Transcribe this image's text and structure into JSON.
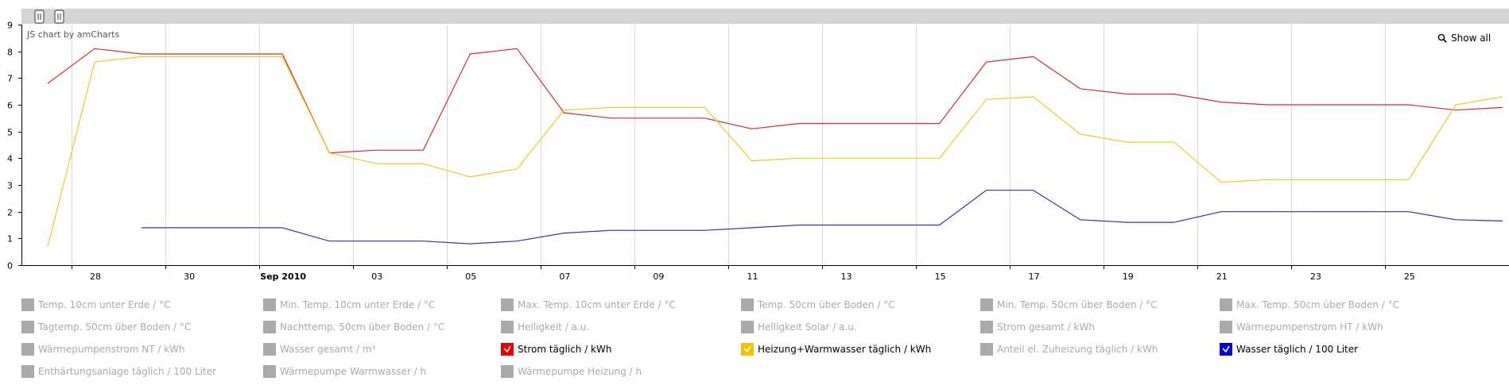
{
  "credit": "JS chart by amCharts",
  "show_all_label": "Show all",
  "chart_data": {
    "type": "line",
    "ylim": [
      0,
      9
    ],
    "yticks": [
      0,
      1,
      2,
      3,
      4,
      5,
      6,
      7,
      8,
      9
    ],
    "x_start": "2010-08-27",
    "x_end": "2010-09-27",
    "xticks": [
      {
        "date": "2010-08-28",
        "label": "28",
        "bold": false
      },
      {
        "date": "2010-08-30",
        "label": "30",
        "bold": false
      },
      {
        "date": "2010-09-01",
        "label": "Sep 2010",
        "bold": true
      },
      {
        "date": "2010-09-03",
        "label": "03",
        "bold": false
      },
      {
        "date": "2010-09-05",
        "label": "05",
        "bold": false
      },
      {
        "date": "2010-09-07",
        "label": "07",
        "bold": false
      },
      {
        "date": "2010-09-09",
        "label": "09",
        "bold": false
      },
      {
        "date": "2010-09-11",
        "label": "11",
        "bold": false
      },
      {
        "date": "2010-09-13",
        "label": "13",
        "bold": false
      },
      {
        "date": "2010-09-15",
        "label": "15",
        "bold": false
      },
      {
        "date": "2010-09-17",
        "label": "17",
        "bold": false
      },
      {
        "date": "2010-09-19",
        "label": "19",
        "bold": false
      },
      {
        "date": "2010-09-21",
        "label": "21",
        "bold": false
      },
      {
        "date": "2010-09-23",
        "label": "23",
        "bold": false
      },
      {
        "date": "2010-09-25",
        "label": "25",
        "bold": false
      }
    ],
    "grid": true,
    "series": [
      {
        "name": "Strom täglich / kWh",
        "color": "#d12b2b",
        "points": [
          [
            "2010-08-27",
            6.8
          ],
          [
            "2010-08-28",
            8.1
          ],
          [
            "2010-08-29",
            7.9
          ],
          [
            "2010-08-30",
            7.9
          ],
          [
            "2010-08-31",
            7.9
          ],
          [
            "2010-09-01",
            7.9
          ],
          [
            "2010-09-02",
            4.2
          ],
          [
            "2010-09-03",
            4.3
          ],
          [
            "2010-09-04",
            4.3
          ],
          [
            "2010-09-05",
            7.9
          ],
          [
            "2010-09-06",
            8.1
          ],
          [
            "2010-09-07",
            5.7
          ],
          [
            "2010-09-08",
            5.5
          ],
          [
            "2010-09-09",
            5.5
          ],
          [
            "2010-09-10",
            5.5
          ],
          [
            "2010-09-11",
            5.1
          ],
          [
            "2010-09-12",
            5.3
          ],
          [
            "2010-09-13",
            5.3
          ],
          [
            "2010-09-14",
            5.3
          ],
          [
            "2010-09-15",
            5.3
          ],
          [
            "2010-09-16",
            7.6
          ],
          [
            "2010-09-17",
            7.8
          ],
          [
            "2010-09-18",
            6.6
          ],
          [
            "2010-09-19",
            6.4
          ],
          [
            "2010-09-20",
            6.4
          ],
          [
            "2010-09-21",
            6.1
          ],
          [
            "2010-09-22",
            6.0
          ],
          [
            "2010-09-23",
            6.0
          ],
          [
            "2010-09-24",
            6.0
          ],
          [
            "2010-09-25",
            6.0
          ],
          [
            "2010-09-26",
            5.8
          ],
          [
            "2010-09-27",
            5.9
          ]
        ]
      },
      {
        "name": "Heizung+Warmwasser täglich / kWh",
        "color": "#f2c61f",
        "points": [
          [
            "2010-08-27",
            0.7
          ],
          [
            "2010-08-28",
            7.6
          ],
          [
            "2010-08-29",
            7.8
          ],
          [
            "2010-08-30",
            7.8
          ],
          [
            "2010-08-31",
            7.8
          ],
          [
            "2010-09-01",
            7.8
          ],
          [
            "2010-09-02",
            4.2
          ],
          [
            "2010-09-03",
            3.8
          ],
          [
            "2010-09-04",
            3.8
          ],
          [
            "2010-09-05",
            3.3
          ],
          [
            "2010-09-06",
            3.6
          ],
          [
            "2010-09-07",
            5.8
          ],
          [
            "2010-09-08",
            5.9
          ],
          [
            "2010-09-09",
            5.9
          ],
          [
            "2010-09-10",
            5.9
          ],
          [
            "2010-09-11",
            3.9
          ],
          [
            "2010-09-12",
            4.0
          ],
          [
            "2010-09-13",
            4.0
          ],
          [
            "2010-09-14",
            4.0
          ],
          [
            "2010-09-15",
            4.0
          ],
          [
            "2010-09-16",
            6.2
          ],
          [
            "2010-09-17",
            6.3
          ],
          [
            "2010-09-18",
            4.9
          ],
          [
            "2010-09-19",
            4.6
          ],
          [
            "2010-09-20",
            4.6
          ],
          [
            "2010-09-21",
            3.1
          ],
          [
            "2010-09-22",
            3.2
          ],
          [
            "2010-09-23",
            3.2
          ],
          [
            "2010-09-24",
            3.2
          ],
          [
            "2010-09-25",
            3.2
          ],
          [
            "2010-09-26",
            6.0
          ],
          [
            "2010-09-27",
            6.3
          ]
        ]
      },
      {
        "name": "Wasser täglich / 100 Liter",
        "color": "#3333aa",
        "points": [
          [
            "2010-08-29",
            1.4
          ],
          [
            "2010-08-30",
            1.4
          ],
          [
            "2010-08-31",
            1.4
          ],
          [
            "2010-09-01",
            1.4
          ],
          [
            "2010-09-02",
            0.9
          ],
          [
            "2010-09-03",
            0.9
          ],
          [
            "2010-09-04",
            0.9
          ],
          [
            "2010-09-05",
            0.8
          ],
          [
            "2010-09-06",
            0.9
          ],
          [
            "2010-09-07",
            1.2
          ],
          [
            "2010-09-08",
            1.3
          ],
          [
            "2010-09-09",
            1.3
          ],
          [
            "2010-09-10",
            1.3
          ],
          [
            "2010-09-11",
            1.4
          ],
          [
            "2010-09-12",
            1.5
          ],
          [
            "2010-09-13",
            1.5
          ],
          [
            "2010-09-14",
            1.5
          ],
          [
            "2010-09-15",
            1.5
          ],
          [
            "2010-09-16",
            2.8
          ],
          [
            "2010-09-17",
            2.8
          ],
          [
            "2010-09-18",
            1.7
          ],
          [
            "2010-09-19",
            1.6
          ],
          [
            "2010-09-20",
            1.6
          ],
          [
            "2010-09-21",
            2.0
          ],
          [
            "2010-09-22",
            2.0
          ],
          [
            "2010-09-23",
            2.0
          ],
          [
            "2010-09-24",
            2.0
          ],
          [
            "2010-09-25",
            2.0
          ],
          [
            "2010-09-26",
            1.7
          ],
          [
            "2010-09-27",
            1.65
          ]
        ]
      }
    ]
  },
  "legend": {
    "inactive_color": "#aaaaaa",
    "items": [
      {
        "label": "Temp. 10cm unter Erde / °C",
        "active": false,
        "color": "#aaaaaa"
      },
      {
        "label": "Min. Temp. 10cm unter Erde / °C",
        "active": false,
        "color": "#aaaaaa"
      },
      {
        "label": "Max. Temp. 10cm unter Erde / °C",
        "active": false,
        "color": "#aaaaaa"
      },
      {
        "label": "Temp. 50cm über Boden / °C",
        "active": false,
        "color": "#aaaaaa"
      },
      {
        "label": "Min. Temp. 50cm über Boden / °C",
        "active": false,
        "color": "#aaaaaa"
      },
      {
        "label": "Max. Temp. 50cm über Boden / °C",
        "active": false,
        "color": "#aaaaaa"
      },
      {
        "label": "Tagtemp. 50cm über Boden / °C",
        "active": false,
        "color": "#aaaaaa"
      },
      {
        "label": "Nachttemp. 50cm über Boden / °C",
        "active": false,
        "color": "#aaaaaa"
      },
      {
        "label": "Helligkeit / a.u.",
        "active": false,
        "color": "#aaaaaa"
      },
      {
        "label": "Helligkeit Solar / a.u.",
        "active": false,
        "color": "#aaaaaa"
      },
      {
        "label": "Strom gesamt / kWh",
        "active": false,
        "color": "#aaaaaa"
      },
      {
        "label": "Wärmepumpenstrom HT / kWh",
        "active": false,
        "color": "#aaaaaa"
      },
      {
        "label": "Wärmepumpenstrom NT / kWh",
        "active": false,
        "color": "#aaaaaa"
      },
      {
        "label": "Wasser gesamt / m³",
        "active": false,
        "color": "#aaaaaa"
      },
      {
        "label": "Strom täglich / kWh",
        "active": true,
        "color": "#e60000"
      },
      {
        "label": "Heizung+Warmwasser täglich / kWh",
        "active": true,
        "color": "#f5c000"
      },
      {
        "label": "Anteil el. Zuheizung täglich / kWh",
        "active": false,
        "color": "#aaaaaa"
      },
      {
        "label": "Wasser täglich / 100 Liter",
        "active": true,
        "color": "#0000cc"
      },
      {
        "label": "Enthärtungsanlage täglich / 100 Liter",
        "active": false,
        "color": "#aaaaaa"
      },
      {
        "label": "Wärmepumpe Warmwasser / h",
        "active": false,
        "color": "#aaaaaa"
      },
      {
        "label": "Wärmepumpe Heizung / h",
        "active": false,
        "color": "#aaaaaa"
      }
    ]
  }
}
